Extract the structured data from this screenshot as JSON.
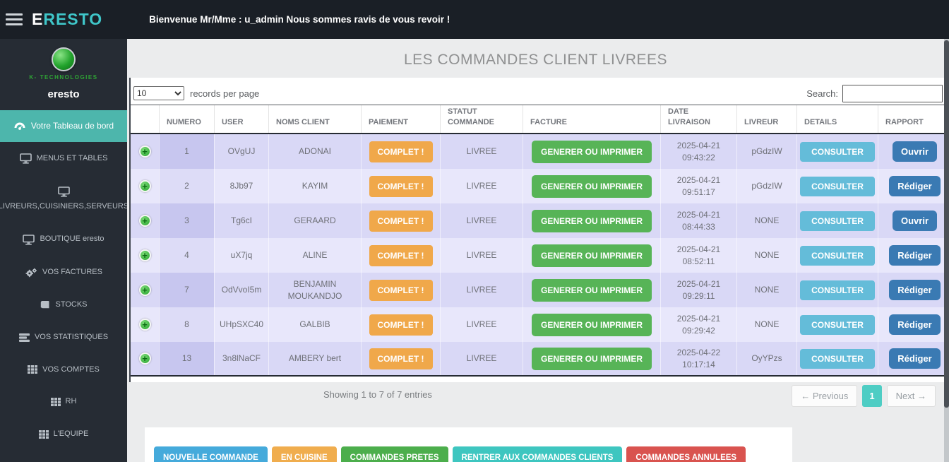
{
  "topbar": {
    "brand": {
      "first_letter": "E",
      "rest": "RESTO"
    },
    "welcome": "Bienvenue Mr/Mme : u_admin Nous sommes ravis de vous revoir !"
  },
  "sidebar": {
    "logo_caption": "K- TECHNOLOGIES",
    "app_name": "eresto",
    "items": [
      {
        "label": "Votre Tableau de bord",
        "icon": "dashboard-icon",
        "active": true
      },
      {
        "label": "MENUS ET TABLES",
        "icon": "monitor-icon"
      },
      {
        "label": "LIVREURS,CUISINIERS,SERVEURS",
        "icon": "monitor-icon"
      },
      {
        "label": "BOUTIQUE eresto",
        "icon": "monitor-icon"
      },
      {
        "label": "VOS FACTURES",
        "icon": "gears-icon"
      },
      {
        "label": "STOCKS",
        "icon": "book-icon"
      },
      {
        "label": "VOS STATISTIQUES",
        "icon": "stats-icon"
      },
      {
        "label": "VOS COMPTES",
        "icon": "grid-icon"
      },
      {
        "label": "RH",
        "icon": "grid-icon"
      },
      {
        "label": "L'EQUIPE",
        "icon": "grid-icon"
      },
      {
        "label": "",
        "icon": "grid-icon"
      }
    ]
  },
  "main": {
    "title": "LES COMMANDES CLIENT LIVREES",
    "records_select_value": "10",
    "records_label": "records per page",
    "search_label": "Search:",
    "table": {
      "headers": [
        "",
        "NUMERO",
        "USER",
        "NOMS CLIENT",
        "PAIEMENT",
        "STATUT COMMANDE",
        "FACTURE",
        "DATE LIVRAISON",
        "LIVREUR",
        "DETAILS",
        "RAPPORT"
      ],
      "paiement_label": "COMPLET !",
      "statut_label": "LIVREE",
      "facture_label": "GENERER OU IMPRIMER",
      "details_label": "CONSULTER",
      "rows": [
        {
          "numero": "1",
          "user": "OVgUJ",
          "client": "ADONAI",
          "date": "2025-04-21",
          "time": "09:43:22",
          "livreur": "pGdzIW",
          "rapport": "Ouvrir"
        },
        {
          "numero": "2",
          "user": "8Jb97",
          "client": "KAYIM",
          "date": "2025-04-21",
          "time": "09:51:17",
          "livreur": "pGdzIW",
          "rapport": "Rédiger"
        },
        {
          "numero": "3",
          "user": "Tg6cI",
          "client": "GERAARD",
          "date": "2025-04-21",
          "time": "08:44:33",
          "livreur": "NONE",
          "rapport": "Ouvrir"
        },
        {
          "numero": "4",
          "user": "uX7jq",
          "client": "ALINE",
          "date": "2025-04-21",
          "time": "08:52:11",
          "livreur": "NONE",
          "rapport": "Rédiger"
        },
        {
          "numero": "7",
          "user": "OdVvoI5m",
          "client": "BENJAMIN MOUKANDJO",
          "date": "2025-04-21",
          "time": "09:29:11",
          "livreur": "NONE",
          "rapport": "Rédiger"
        },
        {
          "numero": "8",
          "user": "UHpSXC40",
          "client": "GALBIB",
          "date": "2025-04-21",
          "time": "09:29:42",
          "livreur": "NONE",
          "rapport": "Rédiger"
        },
        {
          "numero": "13",
          "user": "3n8lNaCF",
          "client": "AMBERY bert",
          "date": "2025-04-22",
          "time": "10:17:14",
          "livreur": "OyYPzs",
          "rapport": "Rédiger"
        }
      ]
    },
    "footer": {
      "showing": "Showing 1 to 7 of 7 entries",
      "previous": "← Previous",
      "page": "1",
      "next": "Next →"
    },
    "actions": [
      {
        "label": "NOUVELLE COMMANDE",
        "color": "#45aadb"
      },
      {
        "label": "EN CUISINE",
        "color": "#f0ad4e"
      },
      {
        "label": "COMMANDES PRETES",
        "color": "#4cae4c"
      },
      {
        "label": "RENTRER AUX COMMANDES CLIENTS",
        "color": "#3ec6c0"
      },
      {
        "label": "COMMANDES ANNULEES",
        "color": "#d9534f"
      }
    ]
  },
  "colors": {
    "topbar_bg": "#1a1f26",
    "sidebar_bg": "#262c34",
    "accent_teal": "#4db6ac",
    "brand_teal": "#3fc6c9",
    "row_odd": "#d9d8f6",
    "row_odd_numero": "#c7c6ef",
    "row_even": "#e8e7fb",
    "row_even_numero": "#dddcf7",
    "paiement_btn": "#f0a84a",
    "facture_btn": "#57b457",
    "details_btn": "#64bcd9",
    "rapport_btn": "#3a7ab3",
    "pagination_active": "#4ecdc4"
  }
}
